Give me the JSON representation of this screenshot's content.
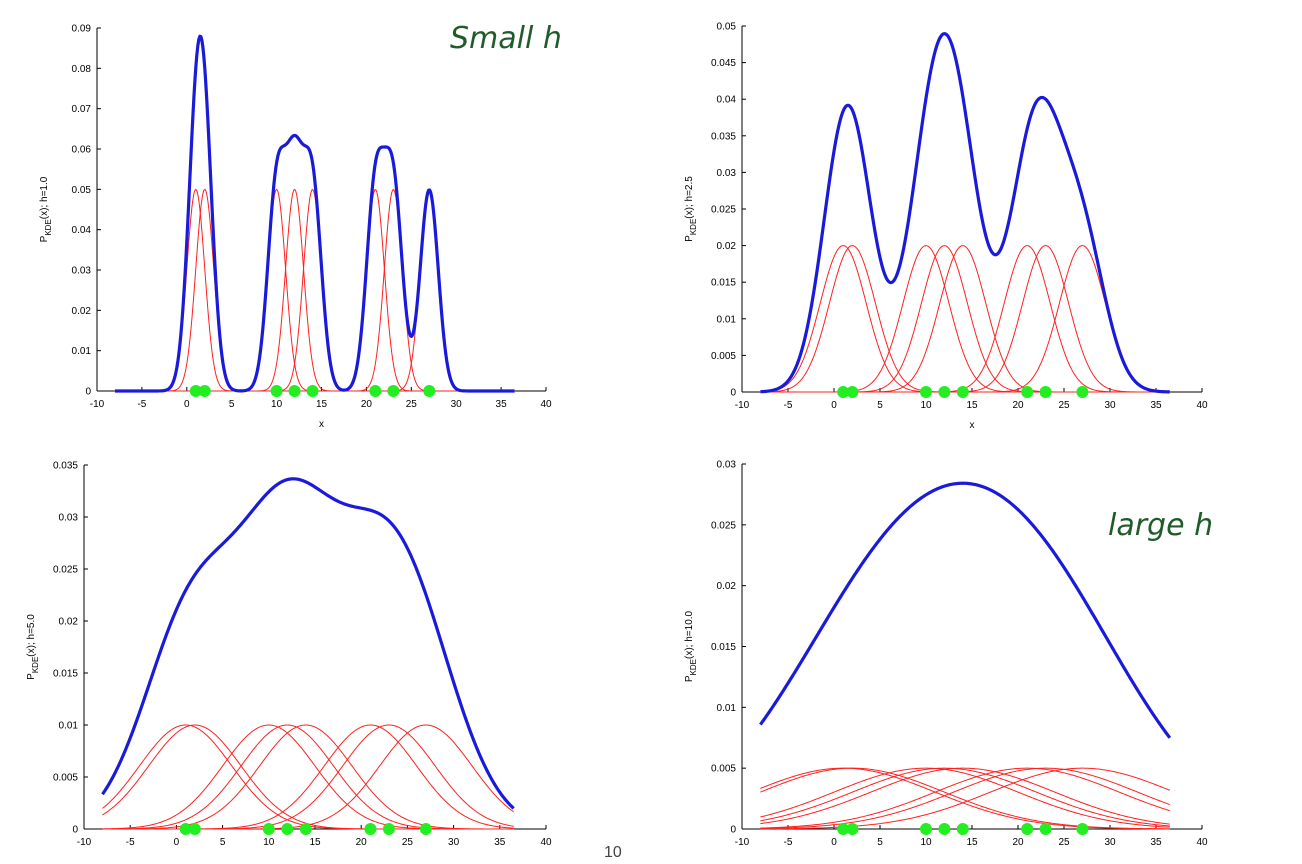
{
  "annotations": {
    "small_h": "Small h",
    "large_h": "large h",
    "page_number": "10"
  },
  "colors": {
    "kde_curve": "#1a1adb",
    "kernels": "#ff2020",
    "points": "#22ee22"
  },
  "chart_data": [
    {
      "type": "line",
      "bandwidth": 1.0,
      "ylabel_main": "P",
      "ylabel_sub": "KDE",
      "ylabel_rest": "(x); h=1.0",
      "xlabel": "x",
      "xlim": [
        -10,
        40
      ],
      "ylim": [
        0,
        0.09
      ],
      "xticks": [
        "-10",
        "-5",
        "0",
        "5",
        "10",
        "15",
        "20",
        "25",
        "30",
        "35",
        "40"
      ],
      "yticks": [
        "0",
        "0.01",
        "0.02",
        "0.03",
        "0.04",
        "0.05",
        "0.06",
        "0.07",
        "0.08",
        "0.09"
      ],
      "data_points": [
        1,
        2,
        10,
        12,
        14,
        21,
        23,
        27
      ],
      "x_range": [
        -8,
        36.5
      ],
      "kernel_peak": 0.05
    },
    {
      "type": "line",
      "bandwidth": 2.5,
      "ylabel_main": "P",
      "ylabel_sub": "KDE",
      "ylabel_rest": "(x); h=2.5",
      "xlabel": "x",
      "xlim": [
        -10,
        40
      ],
      "ylim": [
        0,
        0.05
      ],
      "xticks": [
        "-10",
        "-5",
        "0",
        "5",
        "10",
        "15",
        "20",
        "25",
        "30",
        "35",
        "40"
      ],
      "yticks": [
        "0",
        "0.005",
        "0.01",
        "0.015",
        "0.02",
        "0.025",
        "0.03",
        "0.035",
        "0.04",
        "0.045",
        "0.05"
      ],
      "data_points": [
        1,
        2,
        10,
        12,
        14,
        21,
        23,
        27
      ],
      "x_range": [
        -8,
        36.5
      ],
      "kernel_peak": 0.02
    },
    {
      "type": "line",
      "bandwidth": 5.0,
      "ylabel_main": "P",
      "ylabel_sub": "KDE",
      "ylabel_rest": "(x); h=5.0",
      "xlabel": "",
      "xlim": [
        -10,
        40
      ],
      "ylim": [
        0,
        0.035
      ],
      "xticks": [
        "-10",
        "-5",
        "0",
        "5",
        "10",
        "15",
        "20",
        "25",
        "30",
        "35",
        "40"
      ],
      "yticks": [
        "0",
        "0.005",
        "0.01",
        "0.015",
        "0.02",
        "0.025",
        "0.03",
        "0.035"
      ],
      "data_points": [
        1,
        2,
        10,
        12,
        14,
        21,
        23,
        27
      ],
      "x_range": [
        -8,
        36.5
      ],
      "kernel_peak": 0.01
    },
    {
      "type": "line",
      "bandwidth": 10.0,
      "ylabel_main": "P",
      "ylabel_sub": "KDE",
      "ylabel_rest": "(x); h=10.0",
      "xlabel": "",
      "xlim": [
        -10,
        40
      ],
      "ylim": [
        0,
        0.03
      ],
      "xticks": [
        "-10",
        "-5",
        "0",
        "5",
        "10",
        "15",
        "20",
        "25",
        "30",
        "35",
        "40"
      ],
      "yticks": [
        "0",
        "0.005",
        "0.01",
        "0.015",
        "0.02",
        "0.025",
        "0.03"
      ],
      "data_points": [
        1,
        2,
        10,
        12,
        14,
        21,
        23,
        27
      ],
      "x_range": [
        -8,
        36.5
      ],
      "kernel_peak": 0.005
    }
  ]
}
